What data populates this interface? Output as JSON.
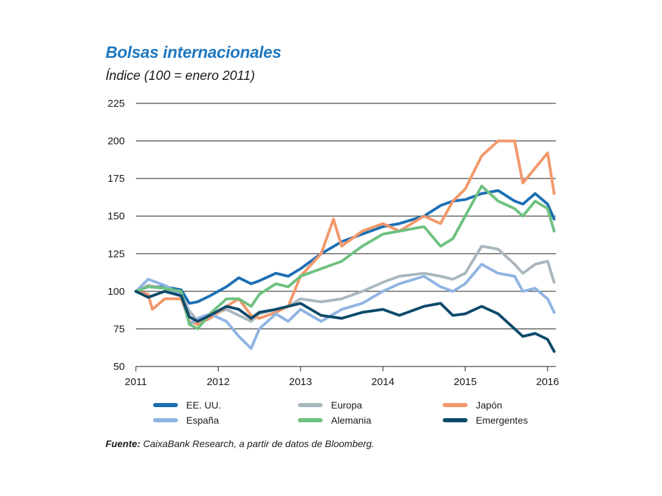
{
  "header": {
    "title": "Bolsas internacionales",
    "subtitle": "Índice (100 = enero 2011)"
  },
  "source": {
    "label": "Fuente:",
    "text": "CaixaBank Research, a partir de datos de Bloomberg."
  },
  "colors": {
    "EE. UU.": "#1d6fb5",
    "Europa": "#a9b7bd",
    "Japón": "#f2986a",
    "España": "#8fb4e3",
    "Alemania": "#6ec17f",
    "Emergentes": "#0e4a6b",
    "grid": "#1a1a1a"
  },
  "chart_data": {
    "type": "line",
    "title": "Bolsas internacionales",
    "ylabel": "Índice (100 = enero 2011)",
    "xlabel": "",
    "xlim": [
      2011,
      2016.1
    ],
    "ylim": [
      50,
      225
    ],
    "xticks": [
      "2011",
      "2012",
      "2013",
      "2014",
      "2015",
      "2016"
    ],
    "yticks": [
      50,
      75,
      100,
      125,
      150,
      175,
      200,
      225
    ],
    "grid": "horizontal",
    "legend_position": "bottom",
    "series": [
      {
        "name": "EE. UU.",
        "x": [
          2011.0,
          2011.15,
          2011.35,
          2011.55,
          2011.65,
          2011.75,
          2011.9,
          2012.1,
          2012.25,
          2012.4,
          2012.5,
          2012.7,
          2012.85,
          2013.0,
          2013.25,
          2013.5,
          2013.75,
          2014.0,
          2014.2,
          2014.5,
          2014.7,
          2014.85,
          2015.0,
          2015.2,
          2015.4,
          2015.6,
          2015.7,
          2015.85,
          2016.0,
          2016.08
        ],
        "values": [
          100,
          103,
          103,
          101,
          92,
          93,
          97,
          103,
          109,
          105,
          107,
          112,
          110,
          115,
          125,
          133,
          138,
          143,
          145,
          150,
          157,
          160,
          161,
          165,
          167,
          160,
          158,
          165,
          158,
          148
        ]
      },
      {
        "name": "Europa",
        "x": [
          2011.0,
          2011.15,
          2011.35,
          2011.55,
          2011.65,
          2011.75,
          2011.9,
          2012.1,
          2012.25,
          2012.4,
          2012.5,
          2012.7,
          2012.85,
          2013.0,
          2013.25,
          2013.5,
          2013.75,
          2014.0,
          2014.2,
          2014.5,
          2014.7,
          2014.85,
          2015.0,
          2015.2,
          2015.4,
          2015.6,
          2015.7,
          2015.85,
          2016.0,
          2016.08
        ],
        "values": [
          100,
          104,
          102,
          98,
          87,
          80,
          84,
          88,
          84,
          80,
          85,
          88,
          90,
          95,
          93,
          95,
          100,
          106,
          110,
          112,
          110,
          108,
          112,
          130,
          128,
          118,
          112,
          118,
          120,
          106
        ]
      },
      {
        "name": "Japón",
        "x": [
          2011.0,
          2011.15,
          2011.2,
          2011.35,
          2011.55,
          2011.65,
          2011.75,
          2011.9,
          2012.1,
          2012.25,
          2012.4,
          2012.5,
          2012.7,
          2012.85,
          2013.0,
          2013.25,
          2013.4,
          2013.5,
          2013.75,
          2014.0,
          2014.2,
          2014.5,
          2014.7,
          2014.85,
          2015.0,
          2015.2,
          2015.4,
          2015.6,
          2015.7,
          2015.85,
          2016.0,
          2016.08
        ],
        "values": [
          100,
          98,
          88,
          95,
          95,
          80,
          78,
          82,
          90,
          95,
          84,
          82,
          86,
          90,
          110,
          125,
          148,
          130,
          140,
          145,
          140,
          150,
          145,
          160,
          168,
          190,
          200,
          200,
          172,
          182,
          192,
          165
        ]
      },
      {
        "name": "España",
        "x": [
          2011.0,
          2011.15,
          2011.35,
          2011.55,
          2011.65,
          2011.75,
          2011.9,
          2012.1,
          2012.25,
          2012.4,
          2012.5,
          2012.7,
          2012.85,
          2013.0,
          2013.25,
          2013.5,
          2013.75,
          2014.0,
          2014.2,
          2014.5,
          2014.7,
          2014.85,
          2015.0,
          2015.2,
          2015.4,
          2015.6,
          2015.7,
          2015.85,
          2016.0,
          2016.08
        ],
        "values": [
          100,
          108,
          104,
          98,
          78,
          82,
          85,
          80,
          70,
          62,
          75,
          85,
          80,
          88,
          80,
          88,
          92,
          100,
          105,
          110,
          103,
          100,
          105,
          118,
          112,
          110,
          100,
          102,
          95,
          86
        ]
      },
      {
        "name": "Alemania",
        "x": [
          2011.0,
          2011.15,
          2011.35,
          2011.55,
          2011.65,
          2011.75,
          2011.9,
          2012.1,
          2012.25,
          2012.4,
          2012.5,
          2012.7,
          2012.85,
          2013.0,
          2013.25,
          2013.5,
          2013.75,
          2014.0,
          2014.2,
          2014.5,
          2014.7,
          2014.85,
          2015.0,
          2015.2,
          2015.4,
          2015.6,
          2015.7,
          2015.85,
          2016.0,
          2016.08
        ],
        "values": [
          100,
          103,
          102,
          100,
          78,
          75,
          85,
          95,
          95,
          90,
          98,
          105,
          103,
          110,
          115,
          120,
          130,
          138,
          140,
          143,
          130,
          135,
          150,
          170,
          160,
          155,
          150,
          160,
          155,
          140
        ]
      },
      {
        "name": "Emergentes",
        "x": [
          2011.0,
          2011.15,
          2011.35,
          2011.55,
          2011.65,
          2011.75,
          2011.9,
          2012.1,
          2012.25,
          2012.4,
          2012.5,
          2012.7,
          2012.85,
          2013.0,
          2013.25,
          2013.5,
          2013.75,
          2014.0,
          2014.2,
          2014.5,
          2014.7,
          2014.85,
          2015.0,
          2015.2,
          2015.4,
          2015.6,
          2015.7,
          2015.85,
          2016.0,
          2016.08
        ],
        "values": [
          100,
          96,
          100,
          97,
          83,
          80,
          84,
          90,
          88,
          82,
          86,
          88,
          90,
          92,
          84,
          82,
          86,
          88,
          84,
          90,
          92,
          84,
          85,
          90,
          85,
          75,
          70,
          72,
          68,
          60
        ]
      }
    ]
  }
}
